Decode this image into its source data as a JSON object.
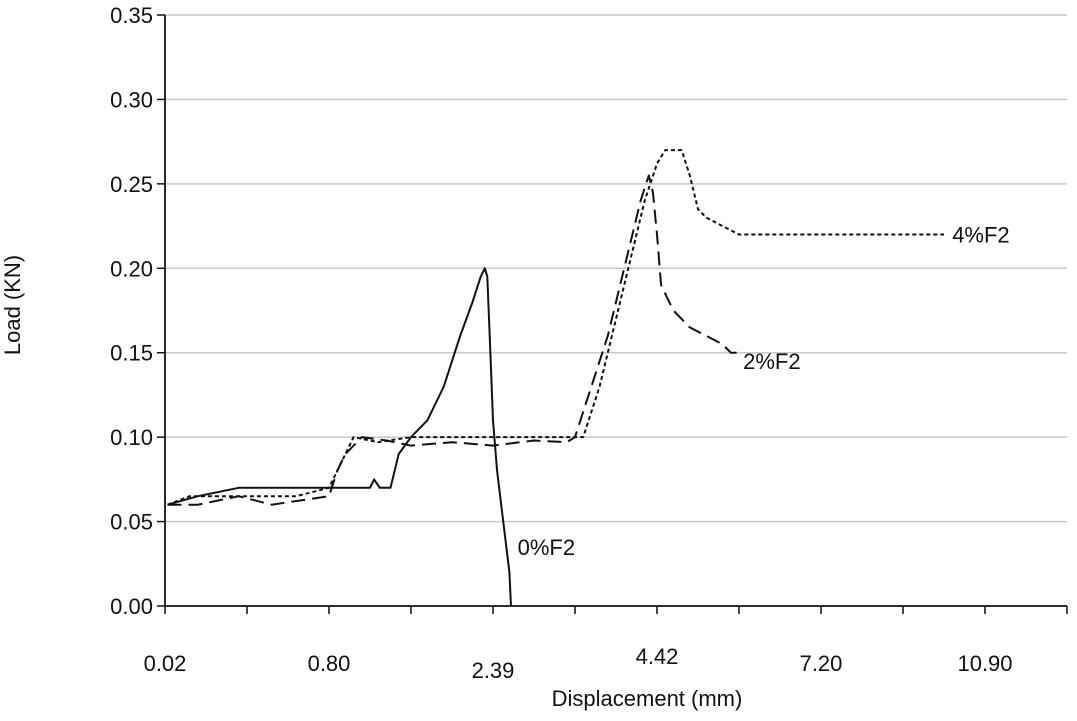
{
  "chart_data": {
    "type": "line",
    "title": "",
    "xlabel": "Displacement (mm)",
    "ylabel": "Load (KN)",
    "x_tick_labels": [
      "0.02",
      "0.80",
      "2.39",
      "4.42",
      "7.20",
      "10.90"
    ],
    "x_tick_positions": [
      0,
      2,
      4,
      6,
      8,
      10
    ],
    "xlim": [
      0,
      11
    ],
    "ylim": [
      0,
      0.35
    ],
    "y_ticks": [
      "0.00",
      "0.05",
      "0.10",
      "0.15",
      "0.20",
      "0.25",
      "0.30",
      "0.35"
    ],
    "grid": {
      "horizontal": true,
      "vertical": false
    },
    "legend": "inline labels",
    "colors": {
      "line": "#111111",
      "grid": "#c8c8c8",
      "axis": "#111111"
    },
    "series": [
      {
        "name": "0%F2",
        "style": "solid",
        "points": [
          [
            0.03,
            0.06
          ],
          [
            0.4,
            0.065
          ],
          [
            0.9,
            0.07
          ],
          [
            2.0,
            0.07
          ],
          [
            2.5,
            0.07
          ],
          [
            2.55,
            0.075
          ],
          [
            2.62,
            0.07
          ],
          [
            2.75,
            0.07
          ],
          [
            2.85,
            0.09
          ],
          [
            3.0,
            0.1
          ],
          [
            3.2,
            0.11
          ],
          [
            3.4,
            0.13
          ],
          [
            3.6,
            0.16
          ],
          [
            3.75,
            0.18
          ],
          [
            3.85,
            0.195
          ],
          [
            3.9,
            0.2
          ],
          [
            3.93,
            0.195
          ],
          [
            3.96,
            0.16
          ],
          [
            4.0,
            0.11
          ],
          [
            4.05,
            0.08
          ],
          [
            4.1,
            0.06
          ],
          [
            4.15,
            0.04
          ],
          [
            4.2,
            0.02
          ],
          [
            4.22,
            0.0
          ]
        ],
        "label_anchor": [
          4.3,
          0.035
        ]
      },
      {
        "name": "2%F2",
        "style": "dashed",
        "points": [
          [
            0.03,
            0.06
          ],
          [
            0.4,
            0.06
          ],
          [
            0.9,
            0.065
          ],
          [
            1.3,
            0.06
          ],
          [
            2.0,
            0.065
          ],
          [
            2.1,
            0.08
          ],
          [
            2.2,
            0.09
          ],
          [
            2.3,
            0.095
          ],
          [
            2.4,
            0.1
          ],
          [
            2.7,
            0.098
          ],
          [
            3.0,
            0.095
          ],
          [
            3.5,
            0.097
          ],
          [
            4.0,
            0.095
          ],
          [
            4.5,
            0.098
          ],
          [
            4.9,
            0.097
          ],
          [
            5.0,
            0.1
          ],
          [
            5.2,
            0.13
          ],
          [
            5.4,
            0.16
          ],
          [
            5.6,
            0.2
          ],
          [
            5.8,
            0.24
          ],
          [
            5.9,
            0.255
          ],
          [
            5.95,
            0.245
          ],
          [
            6.0,
            0.22
          ],
          [
            6.05,
            0.19
          ],
          [
            6.2,
            0.175
          ],
          [
            6.4,
            0.165
          ],
          [
            6.6,
            0.16
          ],
          [
            6.8,
            0.155
          ],
          [
            6.9,
            0.15
          ],
          [
            7.0,
            0.15
          ]
        ],
        "label_anchor": [
          7.05,
          0.145
        ]
      },
      {
        "name": "4%F2",
        "style": "dotted",
        "points": [
          [
            0.03,
            0.06
          ],
          [
            0.3,
            0.065
          ],
          [
            0.6,
            0.065
          ],
          [
            1.0,
            0.065
          ],
          [
            1.6,
            0.065
          ],
          [
            2.0,
            0.07
          ],
          [
            2.1,
            0.08
          ],
          [
            2.2,
            0.09
          ],
          [
            2.3,
            0.1
          ],
          [
            2.6,
            0.097
          ],
          [
            3.0,
            0.1
          ],
          [
            3.6,
            0.1
          ],
          [
            4.2,
            0.1
          ],
          [
            4.8,
            0.1
          ],
          [
            5.1,
            0.1
          ],
          [
            5.3,
            0.13
          ],
          [
            5.5,
            0.17
          ],
          [
            5.7,
            0.21
          ],
          [
            5.85,
            0.24
          ],
          [
            6.0,
            0.262
          ],
          [
            6.1,
            0.27
          ],
          [
            6.3,
            0.27
          ],
          [
            6.4,
            0.255
          ],
          [
            6.5,
            0.235
          ],
          [
            6.6,
            0.23
          ],
          [
            6.8,
            0.225
          ],
          [
            7.0,
            0.22
          ],
          [
            8.0,
            0.22
          ],
          [
            9.0,
            0.22
          ],
          [
            9.5,
            0.22
          ]
        ],
        "label_anchor": [
          9.6,
          0.22
        ]
      }
    ]
  }
}
